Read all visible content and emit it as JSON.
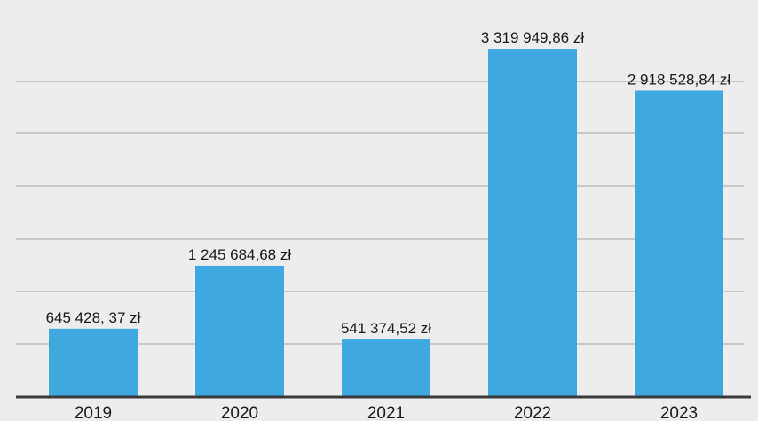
{
  "chart_data": {
    "type": "bar",
    "title": "",
    "xlabel": "",
    "ylabel": "",
    "categories": [
      "2019",
      "2020",
      "2021",
      "2022",
      "2023"
    ],
    "values": [
      645428.37,
      1245684.68,
      541374.52,
      3319949.86,
      2918528.84
    ],
    "data_labels": [
      "645 428, 37 zł",
      "1 245 684,68 zł",
      "541 374,52 zł",
      "3 319 949,86 zł",
      "2 918 528,84 zł"
    ],
    "ylim": [
      0,
      3500000
    ],
    "grid": true,
    "bar_color": "#3fa8e0",
    "background_color": "#ededed"
  }
}
